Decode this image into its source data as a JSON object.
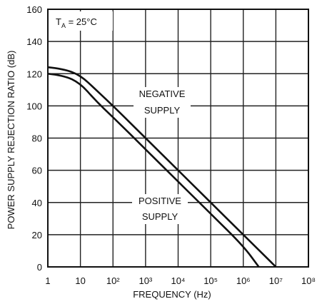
{
  "chart_data": {
    "type": "line",
    "xscale": "log",
    "xlim": [
      1,
      100000000
    ],
    "ylim": [
      0,
      160
    ],
    "xlabel": "FREQUENCY (Hz)",
    "ylabel": "POWER SUPPLY REJECTION RATIO (dB)",
    "grid": true,
    "x_tick_labels": [
      "1",
      "10",
      "10²",
      "10³",
      "10⁴",
      "10⁵",
      "10⁶",
      "10⁷",
      "10⁸"
    ],
    "y_tick_labels": [
      "0",
      "20",
      "40",
      "60",
      "80",
      "100",
      "120",
      "140",
      "160"
    ],
    "condition": {
      "prefix": "T",
      "subscript": "A",
      "suffix": " = 25°C"
    },
    "series": [
      {
        "name": "NEGATIVE SUPPLY",
        "x": [
          1,
          3,
          10,
          30,
          100,
          1000,
          10000,
          100000,
          1000000,
          10000000
        ],
        "y": [
          124,
          123,
          119,
          110,
          100,
          80,
          60,
          40,
          20,
          0
        ]
      },
      {
        "name": "POSITIVE SUPPLY",
        "x": [
          1,
          3,
          10,
          30,
          100,
          1000,
          10000,
          100000,
          1000000,
          3000000
        ],
        "y": [
          120,
          119,
          114,
          103,
          93,
          73,
          53,
          33,
          13,
          0
        ]
      }
    ],
    "annotations": [
      {
        "series": 0,
        "lines": [
          "NEGATIVE",
          "SUPPLY"
        ]
      },
      {
        "series": 1,
        "lines": [
          "POSITIVE",
          "SUPPLY"
        ]
      }
    ]
  }
}
